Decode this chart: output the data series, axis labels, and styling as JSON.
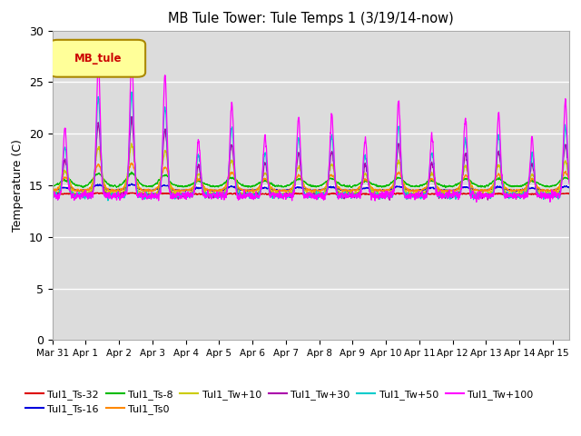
{
  "title": "MB Tule Tower: Tule Temps 1 (3/19/14-now)",
  "ylabel": "Temperature (C)",
  "ylim": [
    0,
    30
  ],
  "yticks": [
    0,
    5,
    10,
    15,
    20,
    25,
    30
  ],
  "x_tick_labels": [
    "Mar 31",
    "Apr 1",
    "Apr 2",
    "Apr 3",
    "Apr 4",
    "Apr 5",
    "Apr 6",
    "Apr 7",
    "Apr 8",
    "Apr 9",
    "Apr 10",
    "Apr 11",
    "Apr 12",
    "Apr 13",
    "Apr 14",
    "Apr 15"
  ],
  "background_color": "#dcdcdc",
  "plot_bg_color": "#dcdcdc",
  "legend_box_facecolor": "#ffff99",
  "legend_box_edgecolor": "#aa8800",
  "legend_text": "MB_tule",
  "legend_text_color": "#cc0000",
  "series": [
    {
      "label": "Tul1_Ts-32",
      "color": "#dd0000",
      "base": 14.1,
      "amp": 0.15,
      "sharpness": 1,
      "noise": 0.05
    },
    {
      "label": "Tul1_Ts-16",
      "color": "#0000dd",
      "base": 14.5,
      "amp": 0.55,
      "sharpness": 1,
      "noise": 0.06
    },
    {
      "label": "Tul1_Ts-8",
      "color": "#00bb00",
      "base": 14.9,
      "amp": 1.2,
      "sharpness": 1,
      "noise": 0.07
    },
    {
      "label": "Tul1_Ts0",
      "color": "#ff8800",
      "base": 14.5,
      "amp": 2.5,
      "sharpness": 2,
      "noise": 0.1
    },
    {
      "label": "Tul1_Tw+10",
      "color": "#cccc00",
      "base": 14.2,
      "amp": 4.5,
      "sharpness": 3,
      "noise": 0.15
    },
    {
      "label": "Tul1_Tw+30",
      "color": "#aa00aa",
      "base": 14.0,
      "amp": 7.0,
      "sharpness": 5,
      "noise": 0.2
    },
    {
      "label": "Tul1_Tw+50",
      "color": "#00cccc",
      "base": 14.0,
      "amp": 9.5,
      "sharpness": 6,
      "noise": 0.25
    },
    {
      "label": "Tul1_Tw+100",
      "color": "#ff00ff",
      "base": 14.0,
      "amp": 13.0,
      "sharpness": 8,
      "noise": 0.3
    }
  ]
}
